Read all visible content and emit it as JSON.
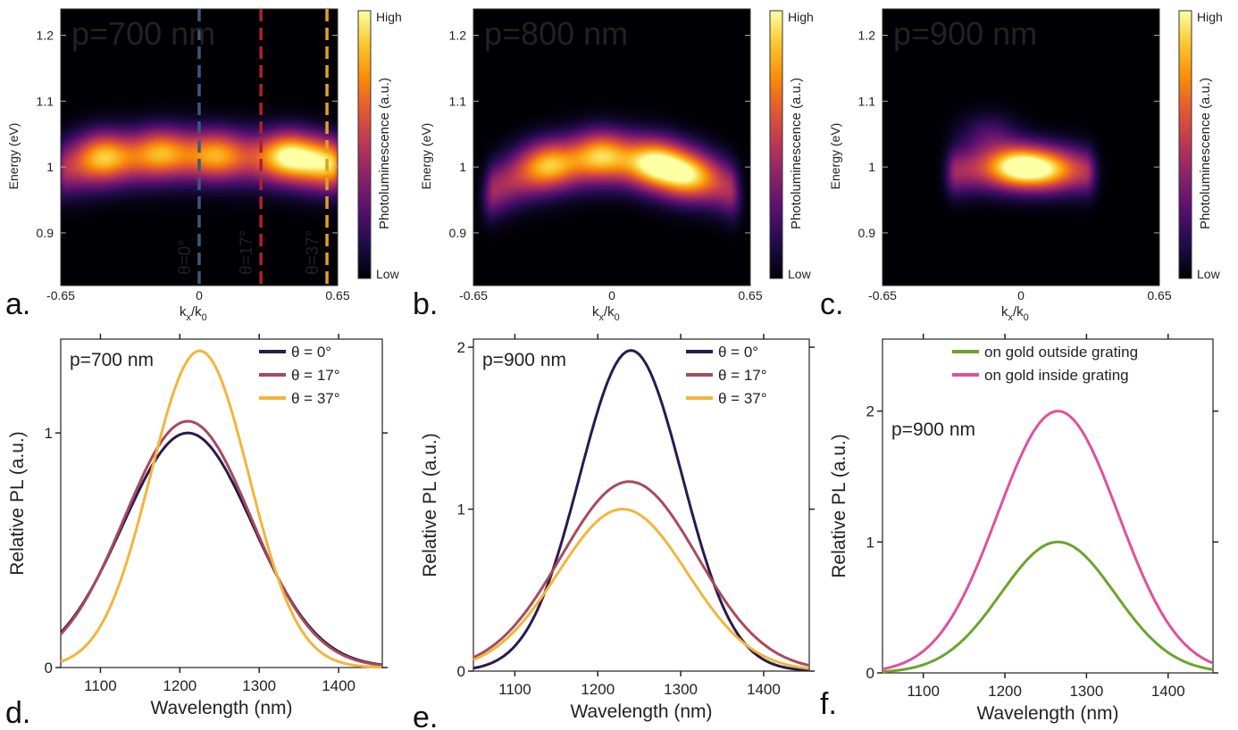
{
  "chart_data": [
    {
      "panel": "a.",
      "type": "heatmap",
      "title": "p=700 nm",
      "xlabel": "k",
      "xlabel_sub": "x",
      "xlabel_mid": "/k",
      "xlabel_sub2": "0",
      "ylabel": "Energy (eV)",
      "xlim": [
        -0.65,
        0.65
      ],
      "ylim": [
        0.82,
        1.24
      ],
      "xticks": [
        "-0.65",
        "0",
        "0.65"
      ],
      "yticks": [
        "0.9",
        "1",
        "1.1",
        "1.2"
      ],
      "colorbar": {
        "label": "Photoluminescence (a.u.)",
        "high": "High",
        "low": "Low"
      },
      "band": {
        "center_energy": 1.015,
        "curvature": 0.02,
        "width": 0.04,
        "kmax": 0.62
      },
      "blobs": [
        [
          -0.45,
          1.02,
          0.8
        ],
        [
          -0.18,
          1.025,
          0.7
        ],
        [
          0.08,
          1.02,
          0.65
        ],
        [
          0.42,
          1.02,
          1.0
        ],
        [
          0.6,
          1.01,
          0.8
        ]
      ],
      "angle_lines": [
        {
          "k": 0.0,
          "label": "θ=0°",
          "color": "#3a5a80"
        },
        {
          "k": 0.29,
          "label": "θ=17°",
          "color": "#b0202a"
        },
        {
          "k": 0.6,
          "label": "θ=37°",
          "color": "#e0a020"
        }
      ]
    },
    {
      "panel": "b.",
      "type": "heatmap",
      "title": "p=800 nm",
      "xlabel": "k",
      "xlabel_sub": "x",
      "xlabel_mid": "/k",
      "xlabel_sub2": "0",
      "ylabel": "Energy (eV)",
      "xlim": [
        -0.65,
        0.65
      ],
      "ylim": [
        0.82,
        1.24
      ],
      "xticks": [
        "-0.65",
        "0",
        "0.65"
      ],
      "yticks": [
        "0.9",
        "1",
        "1.1",
        "1.2"
      ],
      "colorbar": {
        "label": "Photoluminescence (a.u.)",
        "high": "High",
        "low": "Low"
      },
      "band": {
        "center_energy": 1.01,
        "curvature": 0.06,
        "width": 0.04,
        "kmax": 0.55
      },
      "blobs": [
        [
          -0.3,
          1.005,
          0.75
        ],
        [
          -0.05,
          1.02,
          0.8
        ],
        [
          0.2,
          1.005,
          1.0
        ],
        [
          0.35,
          0.985,
          0.85
        ]
      ],
      "angle_lines": []
    },
    {
      "panel": "c.",
      "type": "heatmap",
      "title": "p=900 nm",
      "xlabel": "k",
      "xlabel_sub": "x",
      "xlabel_mid": "/k",
      "xlabel_sub2": "0",
      "ylabel": "Energy (eV)",
      "xlim": [
        -0.65,
        0.65
      ],
      "ylim": [
        0.82,
        1.24
      ],
      "xticks": [
        "-0.65",
        "0",
        "0.65"
      ],
      "yticks": [
        "0.9",
        "1",
        "1.1",
        "1.2"
      ],
      "colorbar": {
        "label": "Photoluminescence (a.u.)",
        "high": "High",
        "low": "Low"
      },
      "band": {
        "center_energy": 1.0,
        "curvature": 0.03,
        "width": 0.035,
        "kmax": 0.3
      },
      "blobs": [
        [
          -0.02,
          1.0,
          1.0
        ],
        [
          0.12,
          0.995,
          0.7
        ],
        [
          -0.15,
          1.05,
          0.35
        ]
      ],
      "angle_lines": []
    },
    {
      "panel": "d.",
      "type": "line",
      "annotation": "p=700 nm",
      "xlabel": "Wavelength (nm)",
      "ylabel": "Relative PL (a.u.)",
      "xlim": [
        1050,
        1455
      ],
      "ylim": [
        0,
        1.4
      ],
      "xticks": [
        1100,
        1200,
        1300,
        1400
      ],
      "yticks": [
        0,
        1
      ],
      "legend": "top-right",
      "series": [
        {
          "name": "θ = 0°",
          "color": "#2a1a4e",
          "peak": 1.0,
          "center": 1210,
          "sigma": 82
        },
        {
          "name": "θ = 17°",
          "color": "#a84a5c",
          "peak": 1.05,
          "center": 1210,
          "sigma": 80
        },
        {
          "name": "θ = 37°",
          "color": "#f2b53c",
          "peak": 1.35,
          "center": 1225,
          "sigma": 62
        }
      ]
    },
    {
      "panel": "e.",
      "type": "line",
      "annotation": "p=900 nm",
      "xlabel": "Wavelength (nm)",
      "ylabel": "Relative PL (a.u.)",
      "xlim": [
        1050,
        1455
      ],
      "ylim": [
        0,
        2.05
      ],
      "xticks": [
        1100,
        1200,
        1300,
        1400
      ],
      "yticks": [
        0,
        1,
        2
      ],
      "legend": "top-right",
      "series": [
        {
          "name": "θ = 0°",
          "color": "#2a1a4e",
          "peak": 1.98,
          "center": 1240,
          "sigma": 62
        },
        {
          "name": "θ = 17°",
          "color": "#a84a5c",
          "peak": 1.17,
          "center": 1238,
          "sigma": 82
        },
        {
          "name": "θ = 37°",
          "color": "#f2b53c",
          "peak": 1.0,
          "center": 1230,
          "sigma": 78
        }
      ]
    },
    {
      "panel": "f.",
      "type": "line",
      "annotation": "p=900 nm",
      "xlabel": "Wavelength (nm)",
      "ylabel": "Relative PL (a.u.)",
      "xlim": [
        1050,
        1455
      ],
      "ylim": [
        0,
        2.55
      ],
      "xticks": [
        1100,
        1200,
        1300,
        1400
      ],
      "yticks": [
        0,
        1,
        2
      ],
      "legend": "top-right",
      "series": [
        {
          "name": "on gold outside grating",
          "color": "#6aa52c",
          "peak": 1.0,
          "center": 1265,
          "sigma": 70
        },
        {
          "name": "on gold inside grating",
          "color": "#e0509e",
          "peak": 2.0,
          "center": 1265,
          "sigma": 74
        }
      ]
    }
  ]
}
